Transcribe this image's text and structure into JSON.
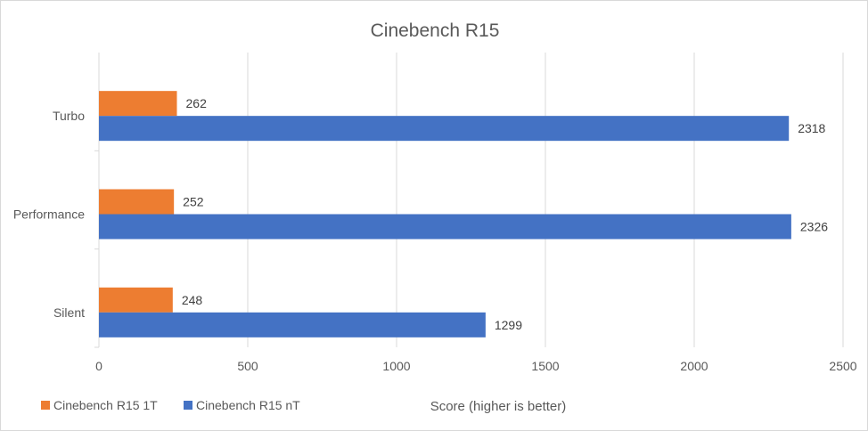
{
  "chart_data": {
    "type": "bar",
    "orientation": "horizontal",
    "title": "Cinebench R15",
    "xlabel": "Score (higher is better)",
    "ylabel": "",
    "xlim": [
      0,
      2500
    ],
    "xticks": [
      0,
      500,
      1000,
      1500,
      2000,
      2500
    ],
    "categories": [
      "Turbo",
      "Performance",
      "Silent"
    ],
    "series": [
      {
        "name": "Cinebench R15 1T",
        "color": "#ed7d31",
        "values": [
          262,
          252,
          248
        ]
      },
      {
        "name": "Cinebench R15 nT",
        "color": "#4472c4",
        "values": [
          2318,
          2326,
          1299
        ]
      }
    ],
    "data_labels": true,
    "grid": "vertical",
    "legend": "bottom-left"
  }
}
